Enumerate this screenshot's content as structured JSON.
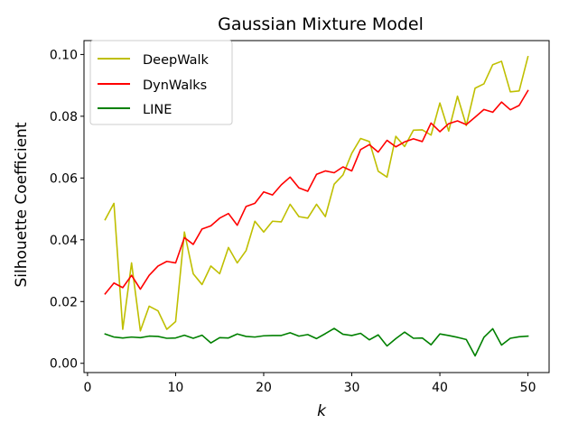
{
  "chart_data": {
    "type": "line",
    "title": "Gaussian Mixture Model",
    "xlabel": "k",
    "ylabel": "Silhouette Coefficient",
    "xlim": [
      -0.4,
      52.4
    ],
    "ylim": [
      -0.003,
      0.1045
    ],
    "xticks": [
      0,
      10,
      20,
      30,
      40,
      50
    ],
    "yticks": [
      0.0,
      0.02,
      0.04,
      0.06,
      0.08,
      0.1
    ],
    "ytick_labels": [
      "0.00",
      "0.02",
      "0.04",
      "0.06",
      "0.08",
      "0.10"
    ],
    "grid": false,
    "legend_position": "upper-left",
    "x": [
      2,
      3,
      4,
      5,
      6,
      7,
      8,
      9,
      10,
      11,
      12,
      13,
      14,
      15,
      16,
      17,
      18,
      19,
      20,
      21,
      22,
      23,
      24,
      25,
      26,
      27,
      28,
      29,
      30,
      31,
      32,
      33,
      34,
      35,
      36,
      37,
      38,
      39,
      40,
      41,
      42,
      43,
      44,
      45,
      46,
      47,
      48,
      49,
      50
    ],
    "series": [
      {
        "name": "DeepWalk",
        "color": "#bfbf00",
        "values": [
          0.0465,
          0.0518,
          0.011,
          0.0325,
          0.0105,
          0.0185,
          0.017,
          0.011,
          0.0135,
          0.0425,
          0.029,
          0.0255,
          0.0315,
          0.029,
          0.0375,
          0.0325,
          0.0365,
          0.046,
          0.0425,
          0.046,
          0.0458,
          0.0515,
          0.0475,
          0.047,
          0.0515,
          0.0475,
          0.058,
          0.061,
          0.068,
          0.0728,
          0.0718,
          0.0622,
          0.0603,
          0.0735,
          0.0702,
          0.0755,
          0.0756,
          0.0739,
          0.0843,
          0.0752,
          0.0865,
          0.077,
          0.0891,
          0.0905,
          0.0967,
          0.0978,
          0.0879,
          0.0882,
          0.0993
        ]
      },
      {
        "name": "DynWalks",
        "color": "#ff0000",
        "values": [
          0.0225,
          0.026,
          0.0245,
          0.0285,
          0.024,
          0.0285,
          0.0315,
          0.033,
          0.0325,
          0.0407,
          0.0385,
          0.0435,
          0.0445,
          0.047,
          0.0485,
          0.0447,
          0.0508,
          0.0518,
          0.0555,
          0.0545,
          0.0578,
          0.0603,
          0.0568,
          0.0557,
          0.0612,
          0.0623,
          0.0617,
          0.0636,
          0.0623,
          0.0692,
          0.0708,
          0.0684,
          0.0722,
          0.0701,
          0.0717,
          0.0727,
          0.0718,
          0.0778,
          0.075,
          0.0776,
          0.0785,
          0.0773,
          0.0797,
          0.0822,
          0.0813,
          0.0846,
          0.0821,
          0.0835,
          0.0883
        ]
      },
      {
        "name": "LINE",
        "color": "#008000",
        "values": [
          0.0095,
          0.0085,
          0.0082,
          0.0085,
          0.0083,
          0.0088,
          0.0087,
          0.0081,
          0.0082,
          0.0091,
          0.0081,
          0.0091,
          0.0066,
          0.0083,
          0.0082,
          0.0095,
          0.0087,
          0.0085,
          0.0089,
          0.009,
          0.009,
          0.0099,
          0.0088,
          0.0093,
          0.008,
          0.0096,
          0.0113,
          0.0094,
          0.009,
          0.0097,
          0.0076,
          0.0092,
          0.0056,
          0.008,
          0.0101,
          0.0081,
          0.0082,
          0.006,
          0.0095,
          0.009,
          0.0084,
          0.0077,
          0.0024,
          0.0084,
          0.0112,
          0.0059,
          0.0081,
          0.0086,
          0.0088
        ]
      }
    ]
  }
}
